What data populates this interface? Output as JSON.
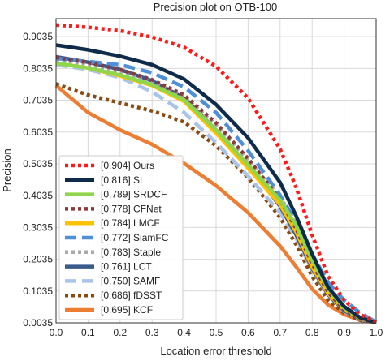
{
  "chart_data": {
    "type": "line",
    "title": "Precision plot on OTB-100",
    "xlabel": "Location error threshold",
    "ylabel": "Precision",
    "xlim": [
      0,
      1
    ],
    "ylim": [
      0.0035,
      0.96
    ],
    "xticks": [
      "0.0",
      "0.1",
      "0.2",
      "0.3",
      "0.4",
      "0.5",
      "0.6",
      "0.7",
      "0.8",
      "0.9",
      "1.0"
    ],
    "yticks": [
      "0.0035",
      "0.1035",
      "0.2035",
      "0.3035",
      "0.4035",
      "0.5035",
      "0.6035",
      "0.7035",
      "0.8035",
      "0.9035"
    ],
    "grid": true,
    "legend_position": "lower-left",
    "x": [
      0.0,
      0.1,
      0.2,
      0.3,
      0.4,
      0.5,
      0.6,
      0.7,
      0.75,
      0.8,
      0.85,
      0.9,
      0.95,
      1.0
    ],
    "series": [
      {
        "name": "[0.904] Ours",
        "color": "#ff1a1a",
        "dash": "dot",
        "values": [
          0.94,
          0.933,
          0.922,
          0.902,
          0.87,
          0.81,
          0.71,
          0.55,
          0.43,
          0.28,
          0.15,
          0.075,
          0.03,
          0.005
        ]
      },
      {
        "name": "[0.816] SL",
        "color": "#0e2c4a",
        "dash": "solid",
        "values": [
          0.877,
          0.862,
          0.842,
          0.815,
          0.77,
          0.69,
          0.585,
          0.445,
          0.34,
          0.22,
          0.115,
          0.055,
          0.02,
          0.004
        ]
      },
      {
        "name": "[0.789] SRDCF",
        "color": "#8fd64b",
        "dash": "solid",
        "values": [
          0.82,
          0.805,
          0.783,
          0.752,
          0.705,
          0.61,
          0.5,
          0.39,
          0.31,
          0.2,
          0.11,
          0.05,
          0.02,
          0.005
        ]
      },
      {
        "name": "[0.778] CFNet",
        "color": "#8b3a3a",
        "dash": "dot",
        "values": [
          0.838,
          0.822,
          0.8,
          0.768,
          0.72,
          0.632,
          0.52,
          0.39,
          0.3,
          0.19,
          0.1,
          0.045,
          0.018,
          0.004
        ]
      },
      {
        "name": "[0.784] LMCF",
        "color": "#ffc000",
        "dash": "solid",
        "values": [
          0.82,
          0.805,
          0.78,
          0.75,
          0.7,
          0.6,
          0.49,
          0.375,
          0.29,
          0.18,
          0.095,
          0.045,
          0.018,
          0.004
        ]
      },
      {
        "name": "[0.772] SiamFC",
        "color": "#4f8fd8",
        "dash": "dash",
        "values": [
          0.835,
          0.825,
          0.815,
          0.79,
          0.745,
          0.665,
          0.545,
          0.405,
          0.32,
          0.22,
          0.13,
          0.075,
          0.035,
          0.006
        ]
      },
      {
        "name": "[0.783] Staple",
        "color": "#aaaaaa",
        "dash": "dot",
        "values": [
          0.83,
          0.815,
          0.792,
          0.762,
          0.715,
          0.625,
          0.515,
          0.4,
          0.315,
          0.205,
          0.11,
          0.05,
          0.02,
          0.004
        ]
      },
      {
        "name": "[0.761] LCT",
        "color": "#3a5a8c",
        "dash": "solid",
        "values": [
          0.84,
          0.823,
          0.8,
          0.765,
          0.71,
          0.61,
          0.5,
          0.37,
          0.28,
          0.175,
          0.092,
          0.042,
          0.016,
          0.004
        ]
      },
      {
        "name": "[0.750] SAMF",
        "color": "#a9c4e8",
        "dash": "dash",
        "values": [
          0.815,
          0.8,
          0.775,
          0.73,
          0.665,
          0.57,
          0.465,
          0.35,
          0.27,
          0.17,
          0.09,
          0.04,
          0.015,
          0.004
        ]
      },
      {
        "name": "[0.686] fDSST",
        "color": "#8a4a10",
        "dash": "dot",
        "values": [
          0.755,
          0.72,
          0.695,
          0.67,
          0.635,
          0.56,
          0.46,
          0.335,
          0.25,
          0.15,
          0.075,
          0.035,
          0.012,
          0.004
        ]
      },
      {
        "name": "[0.695] KCF",
        "color": "#ed7d31",
        "dash": "solid",
        "values": [
          0.75,
          0.665,
          0.61,
          0.565,
          0.505,
          0.435,
          0.35,
          0.245,
          0.18,
          0.11,
          0.06,
          0.03,
          0.012,
          0.004
        ]
      }
    ]
  }
}
